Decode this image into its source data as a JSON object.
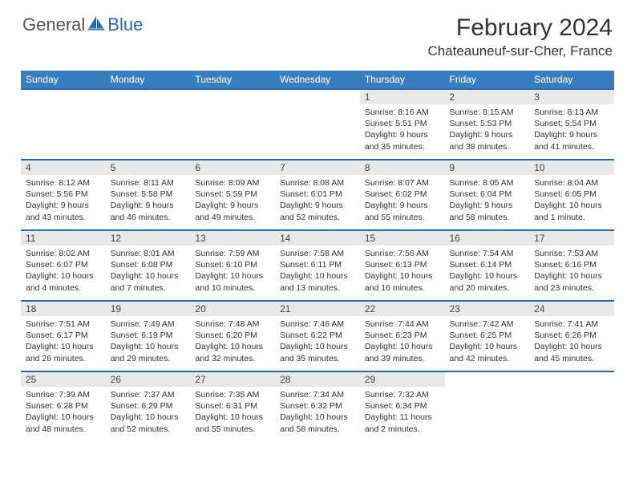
{
  "brand": {
    "general": "General",
    "blue": "Blue"
  },
  "title": "February 2024",
  "location": "Chateauneuf-sur-Cher, France",
  "colors": {
    "header_bg": "#3a7fbd",
    "border": "#2968a8",
    "daynum_bg": "#e8e8e8",
    "text": "#333333"
  },
  "dayNames": [
    "Sunday",
    "Monday",
    "Tuesday",
    "Wednesday",
    "Thursday",
    "Friday",
    "Saturday"
  ],
  "weeks": [
    [
      null,
      null,
      null,
      null,
      {
        "n": "1",
        "sr": "8:16 AM",
        "ss": "5:51 PM",
        "dl": "Daylight: 9 hours and 35 minutes."
      },
      {
        "n": "2",
        "sr": "8:15 AM",
        "ss": "5:53 PM",
        "dl": "Daylight: 9 hours and 38 minutes."
      },
      {
        "n": "3",
        "sr": "8:13 AM",
        "ss": "5:54 PM",
        "dl": "Daylight: 9 hours and 41 minutes."
      }
    ],
    [
      {
        "n": "4",
        "sr": "8:12 AM",
        "ss": "5:56 PM",
        "dl": "Daylight: 9 hours and 43 minutes."
      },
      {
        "n": "5",
        "sr": "8:11 AM",
        "ss": "5:58 PM",
        "dl": "Daylight: 9 hours and 46 minutes."
      },
      {
        "n": "6",
        "sr": "8:09 AM",
        "ss": "5:59 PM",
        "dl": "Daylight: 9 hours and 49 minutes."
      },
      {
        "n": "7",
        "sr": "8:08 AM",
        "ss": "6:01 PM",
        "dl": "Daylight: 9 hours and 52 minutes."
      },
      {
        "n": "8",
        "sr": "8:07 AM",
        "ss": "6:02 PM",
        "dl": "Daylight: 9 hours and 55 minutes."
      },
      {
        "n": "9",
        "sr": "8:05 AM",
        "ss": "6:04 PM",
        "dl": "Daylight: 9 hours and 58 minutes."
      },
      {
        "n": "10",
        "sr": "8:04 AM",
        "ss": "6:05 PM",
        "dl": "Daylight: 10 hours and 1 minute."
      }
    ],
    [
      {
        "n": "11",
        "sr": "8:02 AM",
        "ss": "6:07 PM",
        "dl": "Daylight: 10 hours and 4 minutes."
      },
      {
        "n": "12",
        "sr": "8:01 AM",
        "ss": "6:08 PM",
        "dl": "Daylight: 10 hours and 7 minutes."
      },
      {
        "n": "13",
        "sr": "7:59 AM",
        "ss": "6:10 PM",
        "dl": "Daylight: 10 hours and 10 minutes."
      },
      {
        "n": "14",
        "sr": "7:58 AM",
        "ss": "6:11 PM",
        "dl": "Daylight: 10 hours and 13 minutes."
      },
      {
        "n": "15",
        "sr": "7:56 AM",
        "ss": "6:13 PM",
        "dl": "Daylight: 10 hours and 16 minutes."
      },
      {
        "n": "16",
        "sr": "7:54 AM",
        "ss": "6:14 PM",
        "dl": "Daylight: 10 hours and 20 minutes."
      },
      {
        "n": "17",
        "sr": "7:53 AM",
        "ss": "6:16 PM",
        "dl": "Daylight: 10 hours and 23 minutes."
      }
    ],
    [
      {
        "n": "18",
        "sr": "7:51 AM",
        "ss": "6:17 PM",
        "dl": "Daylight: 10 hours and 26 minutes."
      },
      {
        "n": "19",
        "sr": "7:49 AM",
        "ss": "6:19 PM",
        "dl": "Daylight: 10 hours and 29 minutes."
      },
      {
        "n": "20",
        "sr": "7:48 AM",
        "ss": "6:20 PM",
        "dl": "Daylight: 10 hours and 32 minutes."
      },
      {
        "n": "21",
        "sr": "7:46 AM",
        "ss": "6:22 PM",
        "dl": "Daylight: 10 hours and 35 minutes."
      },
      {
        "n": "22",
        "sr": "7:44 AM",
        "ss": "6:23 PM",
        "dl": "Daylight: 10 hours and 39 minutes."
      },
      {
        "n": "23",
        "sr": "7:42 AM",
        "ss": "6:25 PM",
        "dl": "Daylight: 10 hours and 42 minutes."
      },
      {
        "n": "24",
        "sr": "7:41 AM",
        "ss": "6:26 PM",
        "dl": "Daylight: 10 hours and 45 minutes."
      }
    ],
    [
      {
        "n": "25",
        "sr": "7:39 AM",
        "ss": "6:28 PM",
        "dl": "Daylight: 10 hours and 48 minutes."
      },
      {
        "n": "26",
        "sr": "7:37 AM",
        "ss": "6:29 PM",
        "dl": "Daylight: 10 hours and 52 minutes."
      },
      {
        "n": "27",
        "sr": "7:35 AM",
        "ss": "6:31 PM",
        "dl": "Daylight: 10 hours and 55 minutes."
      },
      {
        "n": "28",
        "sr": "7:34 AM",
        "ss": "6:32 PM",
        "dl": "Daylight: 10 hours and 58 minutes."
      },
      {
        "n": "29",
        "sr": "7:32 AM",
        "ss": "6:34 PM",
        "dl": "Daylight: 11 hours and 2 minutes."
      },
      null,
      null
    ]
  ]
}
